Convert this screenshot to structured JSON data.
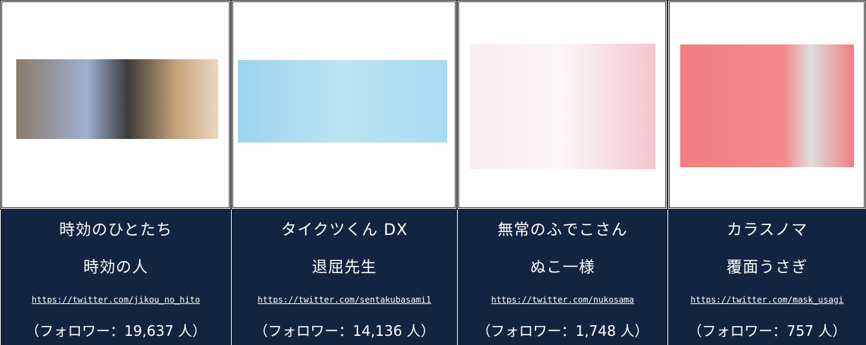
{
  "table": {
    "columns": [
      {
        "title": "時効のひとたち",
        "author": "時効の人",
        "url": "https://twitter.com/jikou_no_hito",
        "followers": "（フォロワー：19,637 人）"
      },
      {
        "title": "タイクツくん DX",
        "author": "退屈先生",
        "url": "https://twitter.com/sentakubasami1",
        "followers": "（フォロワー：14,136 人）"
      },
      {
        "title": "無常のふでこさん",
        "author": "ぬこ一様",
        "url": "https://twitter.com/nukosama",
        "followers": "（フォロワー：1,748 人）"
      },
      {
        "title": "カラスノマ",
        "author": "覆面うさぎ",
        "url": "https://twitter.com/mask_usagi",
        "followers": "（フォロワー：757 人）"
      }
    ]
  }
}
